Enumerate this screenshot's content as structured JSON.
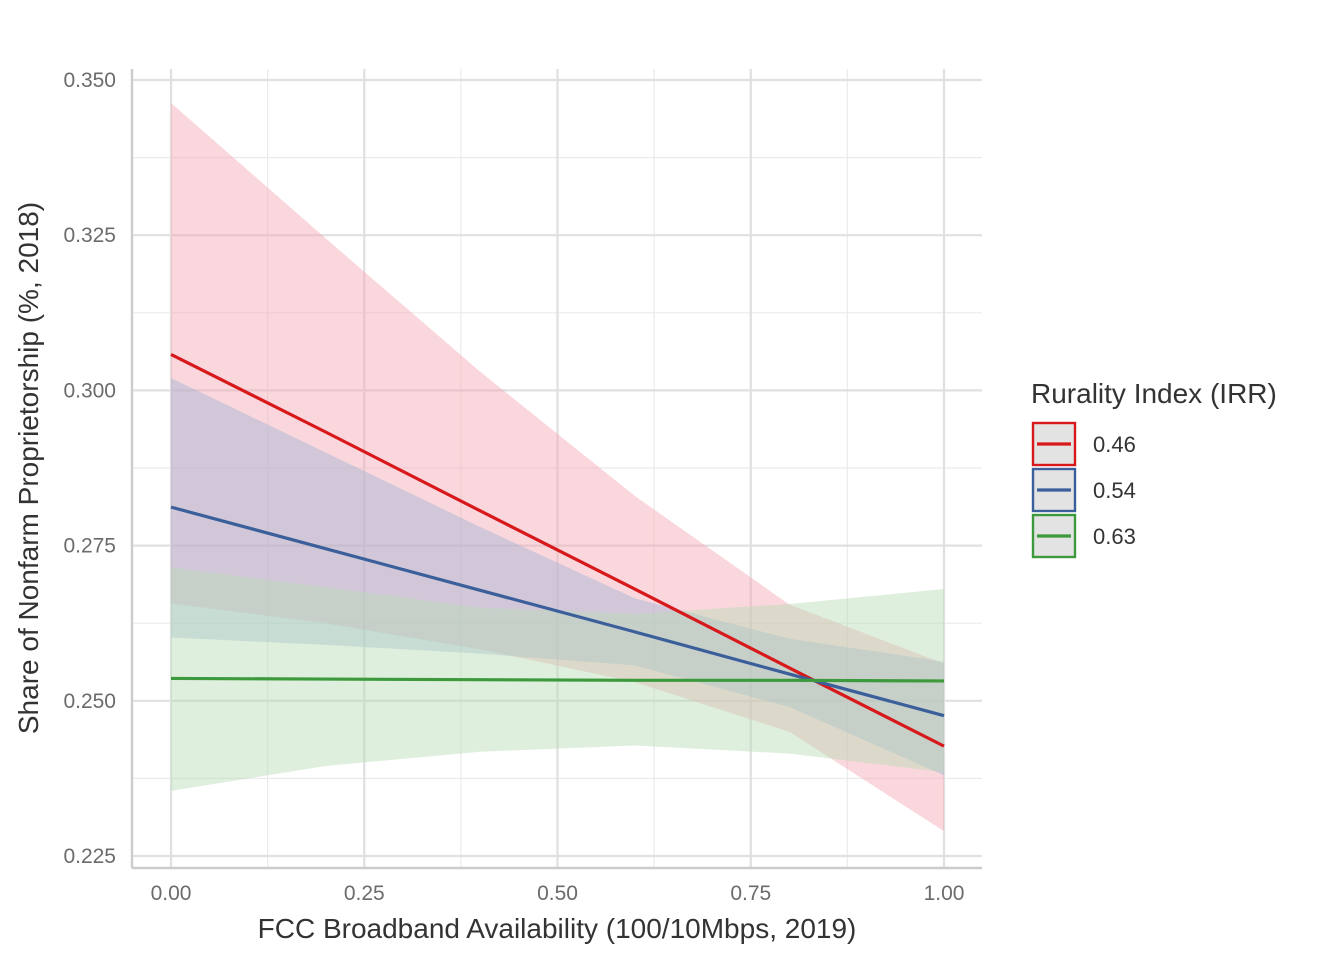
{
  "chart_data": {
    "type": "line",
    "xlabel": "FCC Broadband Availability (100/10Mbps, 2019)",
    "ylabel": "Share of Nonfarm Proprietorship (%, 2018)",
    "xlim": [
      -0.1,
      1.1
    ],
    "ylim": [
      0.223,
      0.352
    ],
    "x_ticks": [
      0,
      0.25,
      0.5,
      0.75,
      1.0
    ],
    "x_tick_labels": [
      "0.00",
      "0.25",
      "0.50",
      "0.75",
      "1.00"
    ],
    "y_ticks": [
      0.225,
      0.25,
      0.275,
      0.3,
      0.325,
      0.35
    ],
    "y_tick_labels": [
      "0.225",
      "0.250",
      "0.275",
      "0.300",
      "0.325",
      "0.350"
    ],
    "grid": true,
    "legend": {
      "title": "Rurality Index (IRR)",
      "position": "right"
    },
    "series": [
      {
        "name": "0.46",
        "color": "#d7191c",
        "fill": "#f4a6b2",
        "x": [
          0,
          0.2,
          0.4,
          0.6,
          0.8,
          1.0
        ],
        "y": [
          0.3058,
          0.2933,
          0.2806,
          0.268,
          0.2553,
          0.2427
        ],
        "upper": [
          0.3463,
          0.3245,
          0.303,
          0.283,
          0.2655,
          0.256
        ],
        "lower": [
          0.2657,
          0.2625,
          0.2583,
          0.253,
          0.245,
          0.229
        ]
      },
      {
        "name": "0.54",
        "color": "#3b5f9a",
        "fill": "#9fb4d4",
        "x": [
          0,
          0.2,
          0.4,
          0.6,
          0.8,
          1.0
        ],
        "y": [
          0.2812,
          0.2745,
          0.2678,
          0.2611,
          0.2543,
          0.2476
        ],
        "upper": [
          0.302,
          0.29,
          0.278,
          0.2665,
          0.26,
          0.2563
        ],
        "lower": [
          0.2602,
          0.259,
          0.2576,
          0.2557,
          0.249,
          0.238
        ]
      },
      {
        "name": "0.63",
        "color": "#3c9a3c",
        "fill": "#b9dcb5",
        "x": [
          0,
          0.2,
          0.4,
          0.6,
          0.8,
          1.0
        ],
        "y": [
          0.2536,
          0.2535,
          0.2534,
          0.2533,
          0.2533,
          0.2532
        ],
        "upper": [
          0.2715,
          0.2683,
          0.265,
          0.264,
          0.2656,
          0.268
        ],
        "lower": [
          0.2355,
          0.2395,
          0.2418,
          0.2428,
          0.2415,
          0.2385
        ]
      }
    ]
  }
}
